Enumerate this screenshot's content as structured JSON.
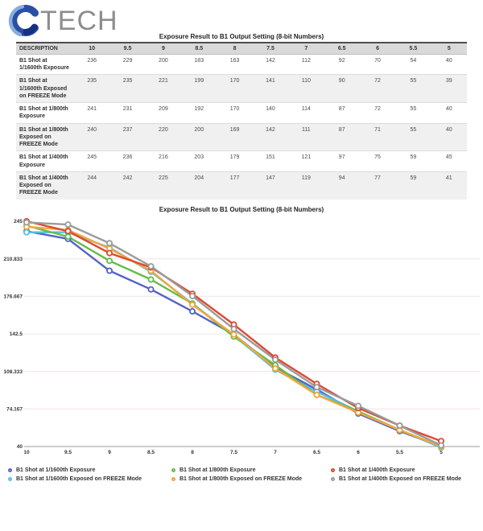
{
  "logo": {
    "text": "TECH"
  },
  "table": {
    "title": "Exposure Result to B1 Output Setting  (8-bit Numbers)",
    "description_header": "DESCRIPTION",
    "columns": [
      "10",
      "9.5",
      "9",
      "8.5",
      "8",
      "7.5",
      "7",
      "6.5",
      "6",
      "5.5",
      "5"
    ],
    "rows": [
      {
        "label": "B1 Shot at 1/1600th Exposure",
        "values": [
          236,
          229,
          200,
          183,
          163,
          142,
          112,
          92,
          70,
          54,
          40
        ]
      },
      {
        "label": "B1 Shot at 1/1600th Exposed on FREEZE Mode",
        "values": [
          235,
          235,
          221,
          199,
          170,
          141,
          110,
          90,
          72,
          55,
          39
        ]
      },
      {
        "label": "B1 Shot at 1/800th Exposure",
        "values": [
          241,
          231,
          209,
          192,
          170,
          140,
          114,
          87,
          72,
          55,
          40
        ]
      },
      {
        "label": "B1 Shot at 1/800th Exposed on FREEZE Mode",
        "values": [
          240,
          237,
          220,
          200,
          169,
          142,
          111,
          87,
          71,
          55,
          40
        ]
      },
      {
        "label": "B1 Shot at 1/400th Exposure",
        "values": [
          245,
          236,
          216,
          203,
          179,
          151,
          121,
          97,
          75,
          59,
          45
        ]
      },
      {
        "label": "B1 Shot at 1/400th Exposed on FREEZE Mode",
        "values": [
          244,
          242,
          225,
          204,
          177,
          147,
          119,
          94,
          77,
          59,
          41
        ]
      }
    ]
  },
  "chart_data": {
    "type": "line",
    "title": "Exposure Result to B1 Output Setting  (8-bit Numbers)",
    "xlabel": "",
    "ylabel": "",
    "categories": [
      "10",
      "9.5",
      "9",
      "8.5",
      "8",
      "7.5",
      "7",
      "6.5",
      "6",
      "5.5",
      "5"
    ],
    "ylim": [
      40,
      245
    ],
    "yticks": [
      245,
      210.833,
      176.667,
      142.5,
      108.333,
      74.167,
      40
    ],
    "ytick_labels": [
      "245",
      "210.833",
      "176.667",
      "142.5",
      "108.333",
      "74.167",
      "40"
    ],
    "grid": true,
    "grid_color": "#f2e4e0",
    "axis_color": "#9a9a9a",
    "legend_position": "bottom",
    "series": [
      {
        "name": "B1 Shot at 1/1600th Exposure",
        "color": "#5562c8",
        "values": [
          236,
          229,
          200,
          183,
          163,
          142,
          112,
          92,
          70,
          54,
          40
        ]
      },
      {
        "name": "B1 Shot at 1/1600th Exposed on FREEZE Mode",
        "color": "#4dc2e8",
        "values": [
          235,
          235,
          221,
          199,
          170,
          141,
          110,
          90,
          72,
          55,
          39
        ]
      },
      {
        "name": "B1 Shot at 1/800th Exposure",
        "color": "#64bc46",
        "values": [
          241,
          231,
          209,
          192,
          170,
          140,
          114,
          87,
          72,
          55,
          40
        ]
      },
      {
        "name": "B1 Shot at 1/800th Exposed on FREEZE Mode",
        "color": "#f5a53a",
        "values": [
          240,
          237,
          220,
          200,
          169,
          142,
          111,
          87,
          71,
          55,
          40
        ]
      },
      {
        "name": "B1 Shot at 1/400th Exposure",
        "color": "#dc4a32",
        "values": [
          245,
          236,
          216,
          203,
          179,
          151,
          121,
          97,
          75,
          59,
          45
        ]
      },
      {
        "name": "B1 Shot at 1/400th Exposed on FREEZE Mode",
        "color": "#9b9b9b",
        "values": [
          244,
          242,
          225,
          204,
          177,
          147,
          119,
          94,
          77,
          59,
          41
        ]
      }
    ]
  }
}
